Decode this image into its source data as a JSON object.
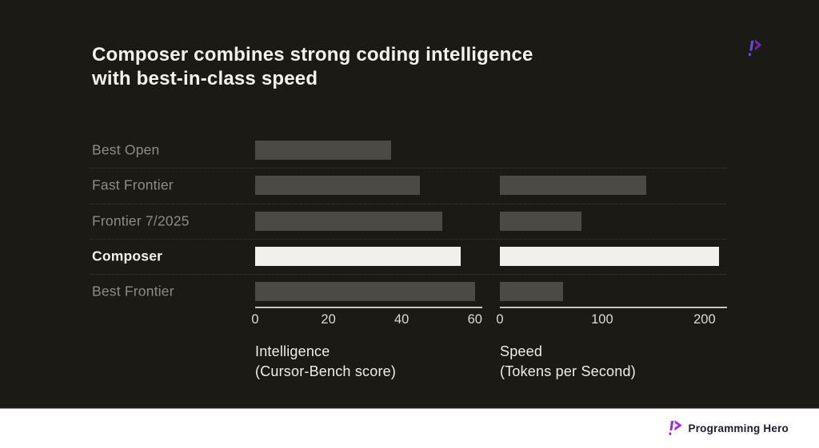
{
  "title": {
    "line1": "Composer combines strong coding intelligence",
    "line2": "with best-in-class speed"
  },
  "rows": [
    "Best Open",
    "Fast Frontier",
    "Frontier 7/2025",
    "Composer",
    "Best Frontier"
  ],
  "highlight_row": "Composer",
  "chart_data": [
    {
      "type": "bar",
      "orientation": "horizontal",
      "axis_label_lines": [
        "Intelligence",
        "(Cursor-Bench score)"
      ],
      "categories": [
        "Best Open",
        "Fast Frontier",
        "Frontier 7/2025",
        "Composer",
        "Best Frontier"
      ],
      "values": [
        37,
        45,
        51,
        56,
        60
      ],
      "xticks": [
        0,
        20,
        40,
        60
      ],
      "xlim": [
        0,
        62
      ],
      "grid": false,
      "highlight_category": "Composer"
    },
    {
      "type": "bar",
      "orientation": "horizontal",
      "axis_label_lines": [
        "Speed",
        "(Tokens per Second)"
      ],
      "categories": [
        "Best Open",
        "Fast Frontier",
        "Frontier 7/2025",
        "Composer",
        "Best Frontier"
      ],
      "values": [
        null,
        143,
        80,
        214,
        62
      ],
      "xticks": [
        0,
        100,
        200
      ],
      "xlim": [
        0,
        222
      ],
      "grid": false,
      "highlight_category": "Composer"
    }
  ],
  "footer": {
    "brand": "Programming Hero"
  },
  "icons": {
    "top_right": "programming-hero-mark",
    "footer": "programming-hero-mark"
  },
  "colors": {
    "background": "#1b1a14",
    "bar": "#4c4a44",
    "bar_highlight": "#f1f0ec",
    "label": "#8e8c83",
    "label_highlight": "#f2f1ed",
    "separator": "#413f35",
    "axis": "#c9c8c2",
    "title_text": "#f3f2ee",
    "footer_bg": "#ffffff",
    "footer_text": "#1e1a38",
    "logo_indigo": "#5c50d8",
    "logo_purple": "#7c1fae",
    "logo_magenta": "#c233e8",
    "logo_violet": "#7b2ff2"
  }
}
